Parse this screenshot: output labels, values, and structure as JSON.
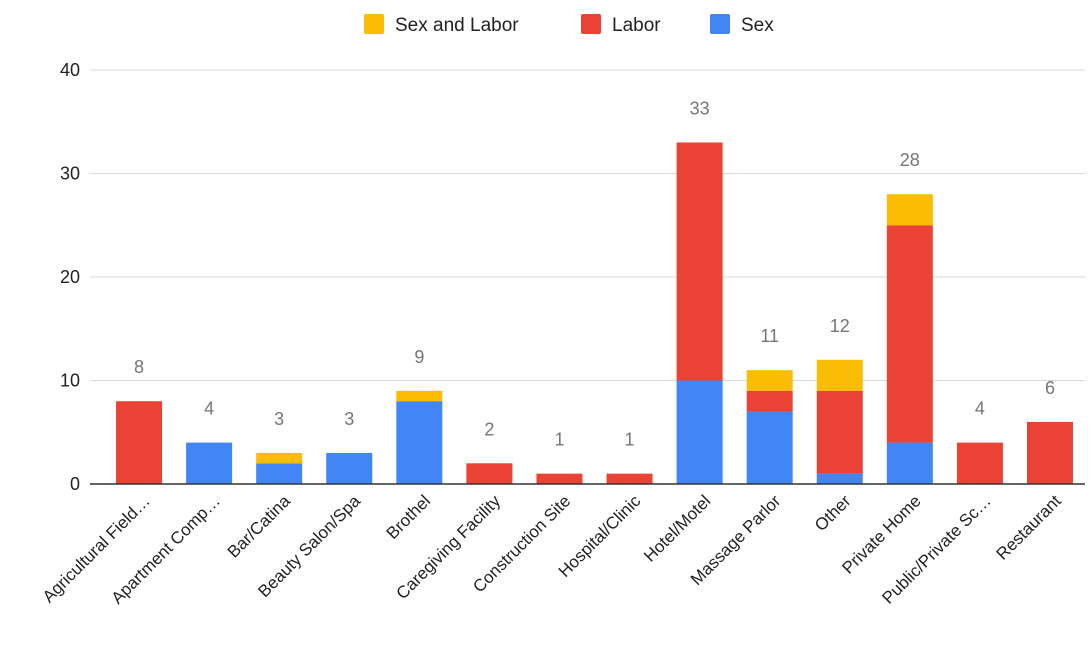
{
  "chart_data": {
    "type": "bar",
    "stacked": true,
    "title": "",
    "xlabel": "",
    "ylabel": "",
    "ylim": [
      0,
      40
    ],
    "yticks": [
      0,
      10,
      20,
      30,
      40
    ],
    "grid": true,
    "legend_position": "top",
    "legend_order": [
      "Sex and Labor",
      "Labor",
      "Sex"
    ],
    "categories": [
      "Agricultural Field…",
      "Apartment Comp…",
      "Bar/Catina",
      "Beauty Salon/Spa",
      "Brothel",
      "Caregiving Facility",
      "Construction Site",
      "Hospital/Clinic",
      "Hotel/Motel",
      "Massage Parlor",
      "Other",
      "Private Home",
      "Public/Private Sc…",
      "Restaurant"
    ],
    "series": [
      {
        "name": "Sex",
        "color": "#4285f4",
        "values": [
          0,
          4,
          2,
          3,
          8,
          0,
          0,
          0,
          10,
          7,
          1,
          4,
          0,
          0
        ]
      },
      {
        "name": "Labor",
        "color": "#ea4335",
        "values": [
          8,
          0,
          0,
          0,
          0,
          2,
          1,
          1,
          23,
          2,
          8,
          21,
          4,
          6
        ]
      },
      {
        "name": "Sex and Labor",
        "color": "#fbbc04",
        "values": [
          0,
          0,
          1,
          0,
          1,
          0,
          0,
          0,
          0,
          2,
          3,
          3,
          0,
          0
        ]
      }
    ],
    "totals": [
      8,
      4,
      3,
      3,
      9,
      2,
      1,
      1,
      33,
      11,
      12,
      28,
      4,
      6
    ]
  }
}
